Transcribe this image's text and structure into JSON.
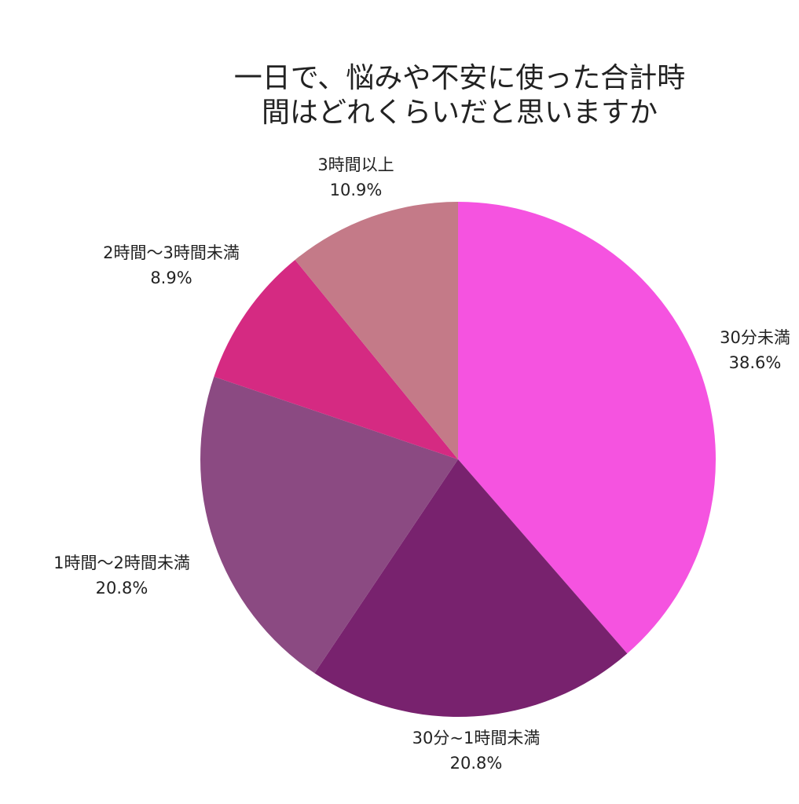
{
  "chart_data": {
    "type": "pie",
    "title_lines": [
      "一日で、悩みや不安に使った合計時",
      "間はどれくらいだと思いますか"
    ],
    "start_angle": "top",
    "direction": "clockwise",
    "slices": [
      {
        "label": "30分未満",
        "value": 38.6,
        "value_label": "38.6%",
        "color": "#f553e0"
      },
      {
        "label": "30分~1時間未満",
        "value": 20.8,
        "value_label": "20.8%",
        "color": "#78226e"
      },
      {
        "label": "1時間～2時間未満",
        "value": 20.8,
        "value_label": "20.8%",
        "color": "#8b4a82"
      },
      {
        "label": "2時間～3時間未満",
        "value": 8.9,
        "value_label": "8.9%",
        "color": "#d52a82"
      },
      {
        "label": "3時間以上",
        "value": 10.9,
        "value_label": "10.9%",
        "color": "#c47a88"
      }
    ]
  }
}
